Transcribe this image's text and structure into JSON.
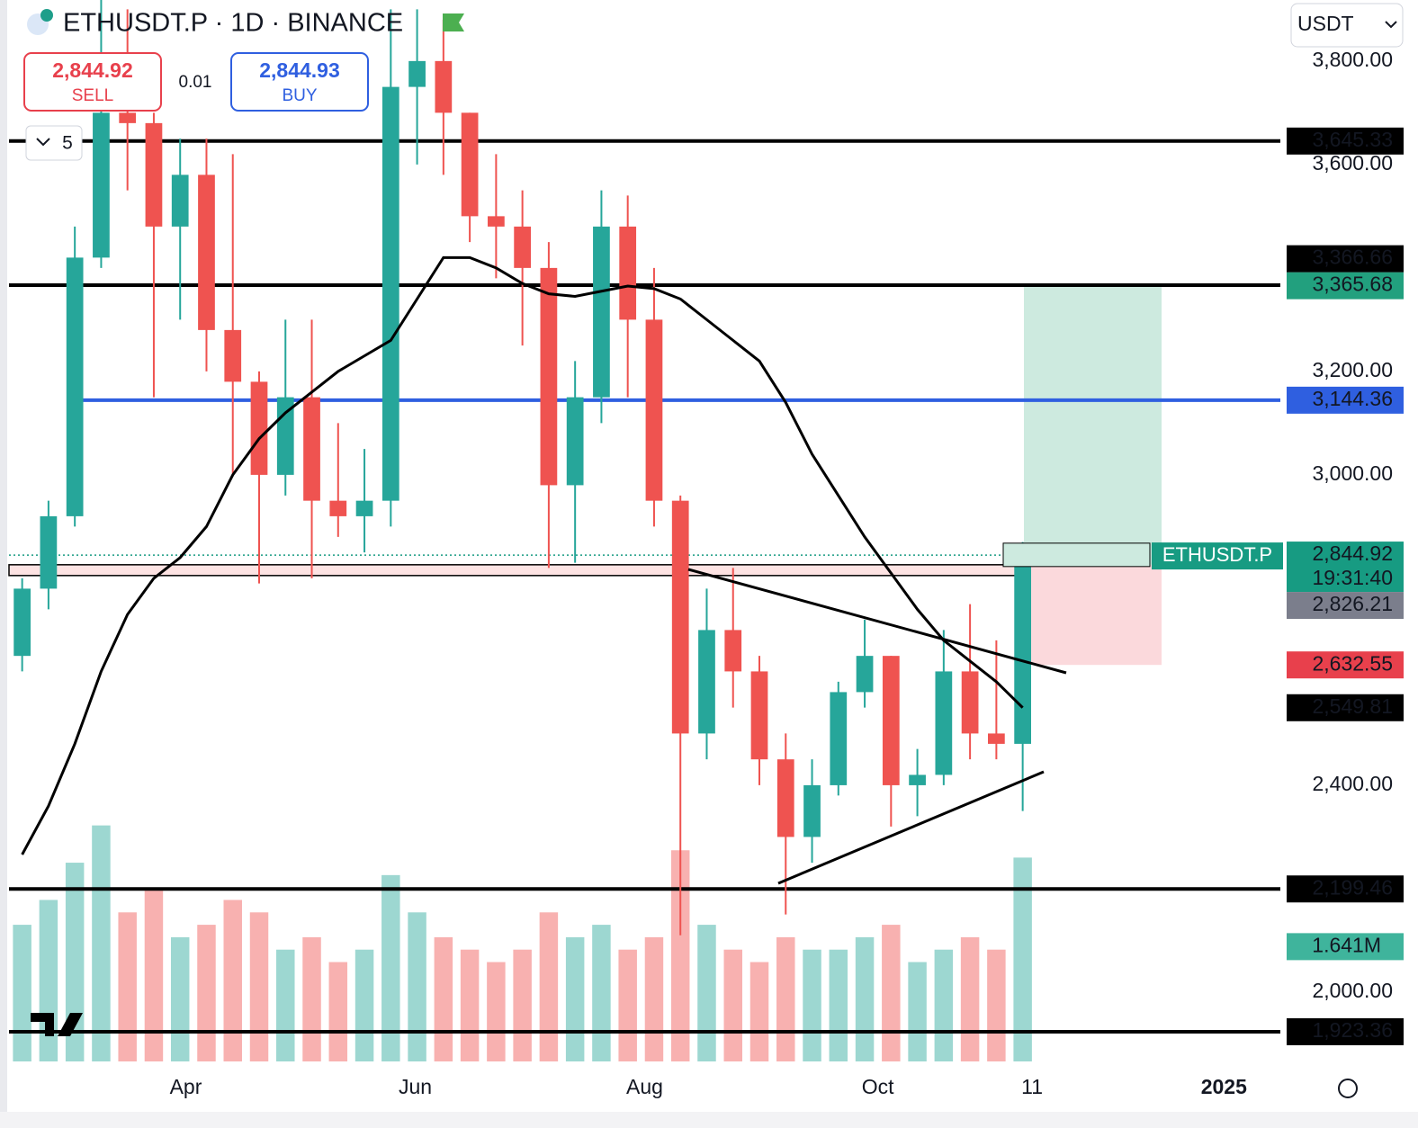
{
  "chart_data": {
    "type": "candlestick",
    "title": "ETHUSDT.P · 1D · BINANCE",
    "sell": {
      "price": "2,844.92",
      "label": "SELL"
    },
    "spread": "0.01",
    "buy": {
      "price": "2,844.93",
      "label": "BUY"
    },
    "indicators_count": "5",
    "currency": "USDT",
    "up_color": "#26a69a",
    "down_color": "#ef5350",
    "ma_color": "#000000",
    "candles": [
      [
        2650,
        2800,
        2620,
        2780
      ],
      [
        2780,
        2950,
        2740,
        2920
      ],
      [
        2920,
        3480,
        2900,
        3420
      ],
      [
        3420,
        3920,
        3400,
        3700
      ],
      [
        3700,
        3900,
        3550,
        3680
      ],
      [
        3680,
        3700,
        3150,
        3480
      ],
      [
        3480,
        3650,
        3300,
        3580
      ],
      [
        3580,
        3650,
        3200,
        3280
      ],
      [
        3280,
        3620,
        3000,
        3180
      ],
      [
        3180,
        3200,
        2790,
        3000
      ],
      [
        3000,
        3300,
        2960,
        3150
      ],
      [
        3150,
        3300,
        2800,
        2950
      ],
      [
        2950,
        3100,
        2880,
        2920
      ],
      [
        2920,
        3050,
        2850,
        2950
      ],
      [
        2950,
        3900,
        2900,
        3750
      ],
      [
        3750,
        3900,
        3600,
        3800
      ],
      [
        3800,
        3880,
        3580,
        3700
      ],
      [
        3700,
        3700,
        3450,
        3500
      ],
      [
        3500,
        3620,
        3380,
        3480
      ],
      [
        3480,
        3550,
        3250,
        3400
      ],
      [
        3400,
        3450,
        2820,
        2980
      ],
      [
        2980,
        3220,
        2830,
        3150
      ],
      [
        3150,
        3550,
        3100,
        3480
      ],
      [
        3480,
        3540,
        3150,
        3300
      ],
      [
        3300,
        3400,
        2900,
        2950
      ],
      [
        2950,
        2960,
        2110,
        2500
      ],
      [
        2500,
        2780,
        2450,
        2700
      ],
      [
        2700,
        2820,
        2550,
        2620
      ],
      [
        2620,
        2650,
        2400,
        2450
      ],
      [
        2450,
        2500,
        2150,
        2300
      ],
      [
        2300,
        2450,
        2250,
        2400
      ],
      [
        2400,
        2600,
        2380,
        2580
      ],
      [
        2580,
        2720,
        2550,
        2650
      ],
      [
        2650,
        2650,
        2320,
        2400
      ],
      [
        2400,
        2470,
        2340,
        2420
      ],
      [
        2420,
        2700,
        2400,
        2620
      ],
      [
        2620,
        2750,
        2450,
        2500
      ],
      [
        2500,
        2680,
        2450,
        2480
      ],
      [
        2480,
        2870,
        2350,
        2845
      ]
    ],
    "ma": [
      2266,
      2360,
      2480,
      2620,
      2730,
      2800,
      2840,
      2900,
      3000,
      3070,
      3120,
      3160,
      3200,
      3230,
      3260,
      3340,
      3420,
      3420,
      3400,
      3370,
      3350,
      3345,
      3355,
      3365,
      3360,
      3340,
      3300,
      3260,
      3220,
      3140,
      3040,
      2960,
      2880,
      2810,
      2740,
      2680,
      2640,
      2600,
      2550
    ],
    "volume": [
      1.1,
      1.3,
      1.6,
      1.9,
      1.2,
      1.4,
      1.0,
      1.1,
      1.3,
      1.2,
      0.9,
      1.0,
      0.8,
      0.9,
      1.5,
      1.2,
      1.0,
      0.9,
      0.8,
      0.9,
      1.2,
      1.0,
      1.1,
      0.9,
      1.0,
      1.7,
      1.1,
      0.9,
      0.8,
      1.0,
      0.9,
      0.9,
      1.0,
      1.1,
      0.8,
      0.9,
      1.0,
      0.9,
      1.641
    ],
    "volume_label": "1.641M",
    "volume_lim": [
      0,
      2.1
    ],
    "ylim": [
      1866,
      3918
    ],
    "yticks": [
      {
        "value": 3800,
        "label": "3,800.00"
      },
      {
        "value": 3600,
        "label": "3,600.00"
      },
      {
        "value": 3200,
        "label": "3,200.00"
      },
      {
        "value": 3000,
        "label": "3,000.00"
      },
      {
        "value": 2400,
        "label": "2,400.00"
      },
      {
        "value": 2000,
        "label": "2,000.00"
      }
    ],
    "xlim": [
      0,
      338
    ],
    "xticks": [
      {
        "value": 47,
        "label": "Apr"
      },
      {
        "value": 108,
        "label": "Jun"
      },
      {
        "value": 169,
        "label": "Aug"
      },
      {
        "value": 231,
        "label": "Oct"
      },
      {
        "value": 272,
        "label": "11"
      },
      {
        "value": 323,
        "label": "2025"
      }
    ],
    "levels": [
      {
        "value": 3645.33,
        "label": "3,645.33",
        "color": "#000000",
        "line": true
      },
      {
        "value": 3365.68,
        "label": "3,365.68",
        "color": "#22a07e",
        "line": false
      },
      {
        "value": 3366.66,
        "label": "3,366.66",
        "color": "#000000",
        "line": true
      },
      {
        "value": 3144.36,
        "label": "3,144.36",
        "color": "#2f5fe0",
        "line": true
      },
      {
        "value": 2844.92,
        "label": "2,844.92",
        "sublabel": "19:31:40",
        "color": "#179b82",
        "line": false
      },
      {
        "value": 2826.21,
        "label": "2,826.21",
        "color": "#7b7e8c",
        "line": false
      },
      {
        "value": 2632.55,
        "label": "2,632.55",
        "color": "#e8404c",
        "line": false
      },
      {
        "value": 2549.81,
        "label": "2,549.81",
        "color": "#000000",
        "line": false
      },
      {
        "value": 2199.46,
        "label": "2,199.46",
        "color": "#000000",
        "line": true
      },
      {
        "value": 1923.36,
        "label": "1,923.36",
        "color": "#000000",
        "line": true
      }
    ],
    "position": {
      "symbol": "ETHUSDT.P",
      "target": 3365.68,
      "entry": 2826.21,
      "stop": 2632.55
    }
  }
}
